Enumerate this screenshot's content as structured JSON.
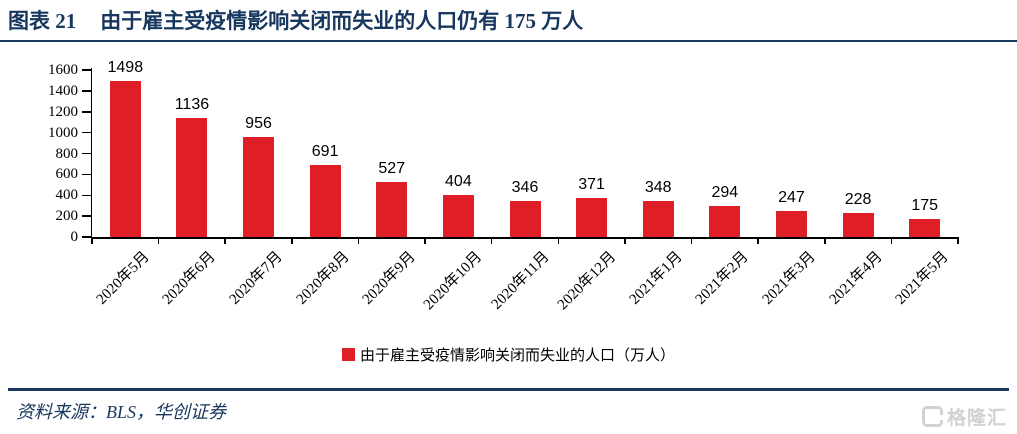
{
  "header": {
    "figure_label": "图表 21",
    "title": "由于雇主受疫情影响关闭而失业的人口仍有 175 万人"
  },
  "chart_data": {
    "type": "bar",
    "title": "由于雇主受疫情影响关闭而失业的人口仍有 175 万人",
    "categories": [
      "2020年5月",
      "2020年6月",
      "2020年7月",
      "2020年8月",
      "2020年9月",
      "2020年10月",
      "2020年11月",
      "2020年12月",
      "2021年1月",
      "2021年2月",
      "2021年3月",
      "2021年4月",
      "2021年5月"
    ],
    "values": [
      1498,
      1136,
      956,
      691,
      527,
      404,
      346,
      371,
      348,
      294,
      247,
      228,
      175
    ],
    "xlabel": "",
    "ylabel": "",
    "ylim": [
      0,
      1600
    ],
    "yticks": [
      0,
      200,
      400,
      600,
      800,
      1000,
      1200,
      1400,
      1600
    ],
    "grid": false,
    "value_labels": true,
    "legend": "由于雇主受疫情影响关闭而失业的人口（万人）",
    "legend_position": "bottom",
    "bar_color": "#e01e25",
    "axis_color": "#000000"
  },
  "source": {
    "text": "资料来源：BLS，华创证券"
  },
  "watermark": {
    "text": "格隆汇",
    "color": "#d2d2d2"
  },
  "colors": {
    "accent_navy": "#17375e",
    "bar_red": "#e01e25"
  }
}
